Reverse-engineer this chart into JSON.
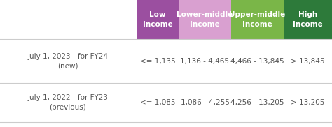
{
  "col_headers": [
    "Low\nIncome",
    "Lower-middle\nIncome",
    "Upper-middle\nIncome",
    "High\nIncome"
  ],
  "col_header_colors": [
    "#9b4fa0",
    "#d9a0d0",
    "#7ab648",
    "#2d7a3a"
  ],
  "col_header_text_color": "#ffffff",
  "row_labels": [
    "July 1, 2023 - for FY24\n(new)",
    "July 1, 2022 - for FY23\n(previous)"
  ],
  "row_data": [
    [
      "<= 1,135",
      "1,136 - 4,465",
      "4,466 - 13,845",
      "> 13,845"
    ],
    [
      "<= 1,085",
      "1,086 - 4,255",
      "4,256 - 13,205",
      "> 13,205"
    ]
  ],
  "row_label_color": "#555555",
  "data_text_color": "#555555",
  "background_color": "#ffffff",
  "divider_color": "#cccccc",
  "figsize": [
    4.74,
    1.82
  ],
  "dpi": 100
}
